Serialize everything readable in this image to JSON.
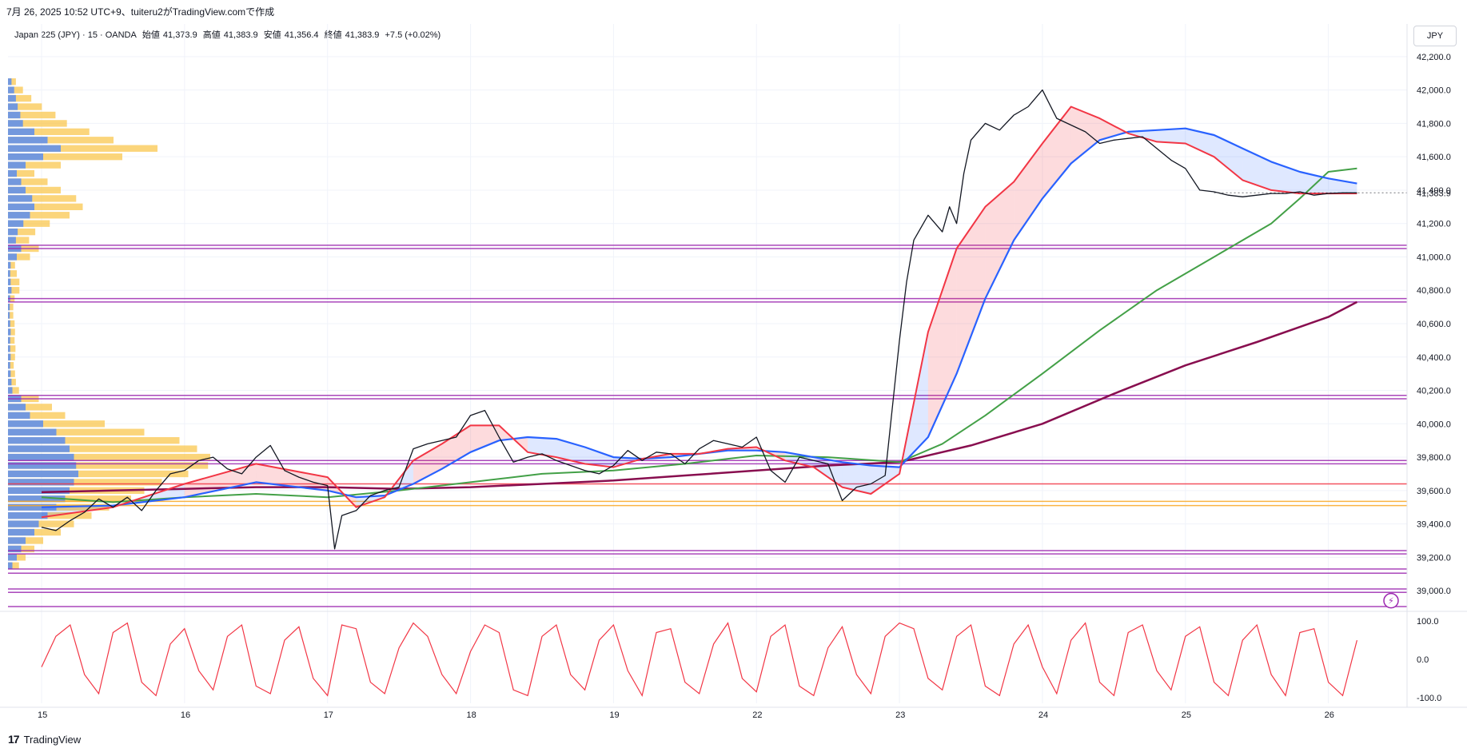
{
  "header": {
    "created_by": "7月 26, 2025 10:52 UTC+9、tuiteru2がTradingView.comで作成"
  },
  "symbol_line": {
    "name": "Japan 225 (JPY) · 15 · OANDA",
    "open_label": "始値",
    "open": "41,373.9",
    "high_label": "高値",
    "high": "41,383.9",
    "low_label": "安値",
    "low": "41,356.4",
    "close_label": "終値",
    "close": "41,383.9",
    "change": "+7.5 (+0.02%)"
  },
  "currency_button": "JPY",
  "footer": {
    "logo_text": "TradingView"
  },
  "colors": {
    "price": "#131722",
    "ema_fast": "#f23645",
    "ema_mid": "#2962ff",
    "ema_slow": "#43a047",
    "ema_long": "#880e4f",
    "levels": "#9c27b0",
    "profile_up": "#5b8def",
    "profile_down": "#f9c74f",
    "oscillator": "#f23645",
    "fill_red": "rgba(242,54,69,0.18)",
    "fill_blue": "rgba(41,98,255,0.15)"
  },
  "chart_data": {
    "type": "line",
    "x_ticks": [
      "15",
      "16",
      "17",
      "18",
      "19",
      "22",
      "23",
      "24",
      "25",
      "26"
    ],
    "y_ticks": [
      "42,200.0",
      "42,000.0",
      "41,800.0",
      "41,600.0",
      "41,400.0",
      "41,200.0",
      "41,000.0",
      "40,800.0",
      "40,600.0",
      "40,400.0",
      "40,200.0",
      "40,000.0",
      "39,800.0",
      "39,600.0",
      "39,400.0",
      "39,200.0",
      "39,000.0"
    ],
    "y_tick_values": [
      42200,
      42000,
      41800,
      41600,
      41400,
      41200,
      41000,
      40800,
      40600,
      40400,
      40200,
      40000,
      39800,
      39600,
      39400,
      39200,
      39000
    ],
    "ylim": [
      38900,
      42300
    ],
    "last_price_label": "41,383.9",
    "last_price": 41383.9,
    "osc_ticks": [
      "100.0",
      "0.0",
      "-100.0"
    ],
    "osc_tick_values": [
      100,
      0,
      -100
    ],
    "osc_ylim": [
      -115,
      115
    ],
    "horizontal_levels": [
      {
        "value": 41070,
        "color": "#9c27b0"
      },
      {
        "value": 41050,
        "color": "#9c27b0"
      },
      {
        "value": 40750,
        "color": "#9c27b0"
      },
      {
        "value": 40730,
        "color": "#9c27b0"
      },
      {
        "value": 40170,
        "color": "#9c27b0"
      },
      {
        "value": 40150,
        "color": "#9c27b0"
      },
      {
        "value": 39780,
        "color": "#9c27b0"
      },
      {
        "value": 39760,
        "color": "#9c27b0"
      },
      {
        "value": 39640,
        "color": "#f23645"
      },
      {
        "value": 39535,
        "color": "#f9a825"
      },
      {
        "value": 39510,
        "color": "#f9a825"
      },
      {
        "value": 39240,
        "color": "#9c27b0"
      },
      {
        "value": 39220,
        "color": "#9c27b0"
      },
      {
        "value": 39130,
        "color": "#9c27b0"
      },
      {
        "value": 39105,
        "color": "#9c27b0"
      },
      {
        "value": 39010,
        "color": "#9c27b0"
      },
      {
        "value": 38990,
        "color": "#9c27b0"
      },
      {
        "value": 38905,
        "color": "#9c27b0"
      }
    ],
    "series": [
      {
        "key": "price",
        "color": "#131722",
        "x": [
          0,
          0.1,
          0.2,
          0.3,
          0.4,
          0.5,
          0.6,
          0.7,
          0.8,
          0.9,
          1.0,
          1.1,
          1.2,
          1.3,
          1.4,
          1.5,
          1.6,
          1.7,
          1.8,
          1.9,
          2.0,
          2.05,
          2.1,
          2.2,
          2.3,
          2.4,
          2.5,
          2.6,
          2.7,
          2.8,
          2.9,
          3.0,
          3.1,
          3.2,
          3.3,
          3.4,
          3.5,
          3.6,
          3.7,
          3.8,
          3.9,
          4.0,
          4.1,
          4.2,
          4.3,
          4.4,
          4.5,
          4.6,
          4.7,
          4.8,
          4.9,
          5.0,
          5.1,
          5.2,
          5.3,
          5.4,
          5.5,
          5.6,
          5.7,
          5.8,
          5.9,
          6.0,
          6.05,
          6.1,
          6.2,
          6.3,
          6.35,
          6.4,
          6.45,
          6.5,
          6.6,
          6.7,
          6.8,
          6.9,
          7.0,
          7.1,
          7.2,
          7.3,
          7.4,
          7.5,
          7.6,
          7.7,
          7.8,
          7.9,
          8.0,
          8.1,
          8.2,
          8.3,
          8.4,
          8.5,
          8.6,
          8.7,
          8.8,
          8.9,
          9.0,
          9.1,
          9.2
        ],
        "y": [
          39380,
          39360,
          39420,
          39470,
          39550,
          39500,
          39560,
          39480,
          39600,
          39700,
          39720,
          39780,
          39800,
          39730,
          39700,
          39800,
          39870,
          39720,
          39680,
          39650,
          39630,
          39250,
          39450,
          39480,
          39570,
          39600,
          39620,
          39850,
          39880,
          39900,
          39920,
          40050,
          40080,
          39920,
          39770,
          39800,
          39820,
          39780,
          39750,
          39720,
          39700,
          39750,
          39840,
          39780,
          39830,
          39820,
          39760,
          39850,
          39900,
          39880,
          39860,
          39920,
          39720,
          39650,
          39800,
          39780,
          39760,
          39540,
          39620,
          39640,
          39690,
          40500,
          40850,
          41100,
          41250,
          41150,
          41300,
          41200,
          41500,
          41700,
          41800,
          41760,
          41850,
          41900,
          42000,
          41830,
          41790,
          41750,
          41680,
          41700,
          41710,
          41720,
          41650,
          41580,
          41530,
          41400,
          41390,
          41370,
          41360,
          41370,
          41380,
          41380,
          41390,
          41370,
          41380,
          41384,
          41384
        ]
      },
      {
        "key": "ema_fast",
        "color": "#f23645",
        "x": [
          0,
          0.5,
          1.0,
          1.5,
          2.0,
          2.2,
          2.4,
          2.6,
          2.8,
          3.0,
          3.2,
          3.4,
          3.6,
          3.8,
          4.0,
          4.2,
          4.4,
          4.6,
          4.8,
          5.0,
          5.2,
          5.4,
          5.6,
          5.8,
          6.0,
          6.2,
          6.4,
          6.6,
          6.8,
          7.0,
          7.2,
          7.4,
          7.6,
          7.8,
          8.0,
          8.2,
          8.4,
          8.6,
          8.8,
          9.0,
          9.2
        ],
        "y": [
          39440,
          39500,
          39640,
          39760,
          39680,
          39500,
          39560,
          39780,
          39880,
          39990,
          39990,
          39830,
          39800,
          39760,
          39740,
          39790,
          39820,
          39820,
          39850,
          39860,
          39780,
          39740,
          39620,
          39580,
          39700,
          40550,
          41050,
          41300,
          41450,
          41680,
          41900,
          41830,
          41740,
          41690,
          41680,
          41600,
          41460,
          41400,
          41380,
          41380,
          41380
        ]
      },
      {
        "key": "ema_mid",
        "color": "#2962ff",
        "x": [
          0,
          0.5,
          1.0,
          1.5,
          2.0,
          2.2,
          2.4,
          2.6,
          2.8,
          3.0,
          3.2,
          3.4,
          3.6,
          3.8,
          4.0,
          4.2,
          4.4,
          4.6,
          4.8,
          5.0,
          5.2,
          5.4,
          5.6,
          5.8,
          6.0,
          6.2,
          6.4,
          6.6,
          6.8,
          7.0,
          7.2,
          7.4,
          7.6,
          7.8,
          8.0,
          8.2,
          8.4,
          8.6,
          8.8,
          9.0,
          9.2
        ],
        "y": [
          39500,
          39510,
          39560,
          39650,
          39600,
          39560,
          39570,
          39640,
          39730,
          39830,
          39900,
          39920,
          39910,
          39860,
          39800,
          39790,
          39800,
          39820,
          39840,
          39840,
          39830,
          39800,
          39770,
          39750,
          39740,
          39920,
          40300,
          40750,
          41100,
          41350,
          41560,
          41700,
          41750,
          41760,
          41770,
          41730,
          41650,
          41570,
          41510,
          41470,
          41440
        ]
      },
      {
        "key": "ema_slow",
        "color": "#43a047",
        "x": [
          0,
          0.5,
          1.0,
          1.5,
          2.0,
          2.5,
          3.0,
          3.5,
          4.0,
          4.5,
          5.0,
          5.5,
          6.0,
          6.3,
          6.6,
          7.0,
          7.4,
          7.8,
          8.2,
          8.6,
          8.8,
          9.0,
          9.2
        ],
        "y": [
          39560,
          39530,
          39560,
          39580,
          39560,
          39600,
          39650,
          39700,
          39720,
          39760,
          39810,
          39800,
          39770,
          39880,
          40050,
          40300,
          40560,
          40800,
          41000,
          41200,
          41350,
          41510,
          41530
        ]
      },
      {
        "key": "ema_long",
        "color": "#880e4f",
        "x": [
          0,
          0.5,
          1.0,
          1.5,
          2.0,
          2.5,
          3.0,
          3.5,
          4.0,
          4.5,
          5.0,
          5.5,
          6.0,
          6.5,
          7.0,
          7.5,
          8.0,
          8.5,
          9.0,
          9.2
        ],
        "y": [
          39590,
          39600,
          39610,
          39620,
          39620,
          39610,
          39620,
          39640,
          39660,
          39690,
          39720,
          39750,
          39770,
          39870,
          40000,
          40180,
          40350,
          40490,
          40640,
          40730
        ]
      }
    ],
    "oscillator": {
      "color": "#f23645",
      "x": [
        0,
        0.1,
        0.2,
        0.3,
        0.4,
        0.5,
        0.6,
        0.7,
        0.8,
        0.9,
        1.0,
        1.1,
        1.2,
        1.3,
        1.4,
        1.5,
        1.6,
        1.7,
        1.8,
        1.9,
        2.0,
        2.1,
        2.2,
        2.3,
        2.4,
        2.5,
        2.6,
        2.7,
        2.8,
        2.9,
        3.0,
        3.1,
        3.2,
        3.3,
        3.4,
        3.5,
        3.6,
        3.7,
        3.8,
        3.9,
        4.0,
        4.1,
        4.2,
        4.3,
        4.4,
        4.5,
        4.6,
        4.7,
        4.8,
        4.9,
        5.0,
        5.1,
        5.2,
        5.3,
        5.4,
        5.5,
        5.6,
        5.7,
        5.8,
        5.9,
        6.0,
        6.1,
        6.2,
        6.3,
        6.4,
        6.5,
        6.6,
        6.7,
        6.8,
        6.9,
        7.0,
        7.1,
        7.2,
        7.3,
        7.4,
        7.5,
        7.6,
        7.7,
        7.8,
        7.9,
        8.0,
        8.1,
        8.2,
        8.3,
        8.4,
        8.5,
        8.6,
        8.7,
        8.8,
        8.9,
        9.0,
        9.1,
        9.2
      ],
      "y": [
        -20,
        60,
        90,
        -40,
        -90,
        70,
        95,
        -60,
        -95,
        40,
        80,
        -30,
        -80,
        60,
        90,
        -70,
        -90,
        50,
        85,
        -50,
        -95,
        90,
        80,
        -60,
        -90,
        30,
        95,
        60,
        -40,
        -90,
        20,
        90,
        70,
        -80,
        -95,
        60,
        90,
        -40,
        -80,
        50,
        90,
        -30,
        -95,
        70,
        80,
        -60,
        -90,
        40,
        95,
        -50,
        -85,
        60,
        90,
        -70,
        -95,
        30,
        85,
        -40,
        -90,
        60,
        95,
        80,
        -50,
        -80,
        60,
        90,
        -70,
        -95,
        40,
        90,
        -20,
        -90,
        50,
        95,
        -60,
        -95,
        70,
        90,
        -30,
        -80,
        60,
        85,
        -60,
        -95,
        50,
        90,
        -40,
        -95,
        70,
        80,
        -60,
        -95,
        50
      ]
    },
    "volume_profile": {
      "bins": [
        42050,
        42000,
        41950,
        41900,
        41850,
        41800,
        41750,
        41700,
        41650,
        41600,
        41550,
        41500,
        41450,
        41400,
        41350,
        41300,
        41250,
        41200,
        41150,
        41100,
        41050,
        41000,
        40950,
        40900,
        40850,
        40800,
        40750,
        40700,
        40650,
        40600,
        40550,
        40500,
        40450,
        40400,
        40350,
        40300,
        40250,
        40200,
        40150,
        40100,
        40050,
        40000,
        39950,
        39900,
        39850,
        39800,
        39750,
        39700,
        39650,
        39600,
        39550,
        39500,
        39450,
        39400,
        39350,
        39300,
        39250,
        39200,
        39150
      ],
      "up": [
        8,
        14,
        18,
        22,
        28,
        34,
        60,
        90,
        120,
        80,
        40,
        20,
        30,
        40,
        55,
        60,
        50,
        35,
        22,
        18,
        30,
        20,
        6,
        5,
        6,
        8,
        5,
        4,
        4,
        5,
        6,
        5,
        5,
        6,
        5,
        6,
        8,
        10,
        30,
        40,
        50,
        80,
        110,
        130,
        140,
        150,
        155,
        160,
        150,
        140,
        130,
        110,
        90,
        70,
        60,
        40,
        30,
        20,
        10
      ],
      "down": [
        10,
        20,
        35,
        55,
        80,
        100,
        125,
        150,
        220,
        180,
        80,
        40,
        60,
        80,
        100,
        110,
        90,
        60,
        40,
        30,
        40,
        30,
        10,
        15,
        20,
        18,
        10,
        8,
        8,
        10,
        10,
        10,
        12,
        10,
        8,
        10,
        10,
        15,
        40,
        60,
        80,
        140,
        200,
        260,
        290,
        310,
        300,
        250,
        200,
        170,
        150,
        120,
        100,
        80,
        60,
        40,
        30,
        20,
        15
      ]
    }
  }
}
